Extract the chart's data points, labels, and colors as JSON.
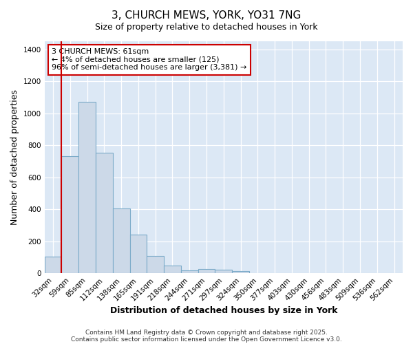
{
  "title1": "3, CHURCH MEWS, YORK, YO31 7NG",
  "title2": "Size of property relative to detached houses in York",
  "xlabel": "Distribution of detached houses by size in York",
  "ylabel": "Number of detached properties",
  "categories": [
    "32sqm",
    "59sqm",
    "85sqm",
    "112sqm",
    "138sqm",
    "165sqm",
    "191sqm",
    "218sqm",
    "244sqm",
    "271sqm",
    "297sqm",
    "324sqm",
    "350sqm",
    "377sqm",
    "403sqm",
    "430sqm",
    "456sqm",
    "483sqm",
    "509sqm",
    "536sqm",
    "562sqm"
  ],
  "values": [
    105,
    730,
    1070,
    755,
    405,
    240,
    110,
    50,
    20,
    28,
    22,
    15,
    0,
    0,
    0,
    0,
    0,
    0,
    0,
    0,
    0
  ],
  "bar_color": "#ccd9e8",
  "bar_edge_color": "#7aaac8",
  "vline_color": "#cc0000",
  "vline_x_index": 1,
  "annotation_text": "3 CHURCH MEWS: 61sqm\n← 4% of detached houses are smaller (125)\n96% of semi-detached houses are larger (3,381) →",
  "annotation_box_facecolor": "#ffffff",
  "annotation_box_edgecolor": "#cc0000",
  "ylim": [
    0,
    1450
  ],
  "yticks": [
    0,
    200,
    400,
    600,
    800,
    1000,
    1200,
    1400
  ],
  "fig_bg_color": "#ffffff",
  "plot_bg_color": "#dce8f5",
  "footer1": "Contains HM Land Registry data © Crown copyright and database right 2025.",
  "footer2": "Contains public sector information licensed under the Open Government Licence v3.0.",
  "title1_fontsize": 11,
  "title2_fontsize": 9,
  "axis_label_fontsize": 9,
  "tick_fontsize": 7.5,
  "annotation_fontsize": 8,
  "footer_fontsize": 6.5
}
